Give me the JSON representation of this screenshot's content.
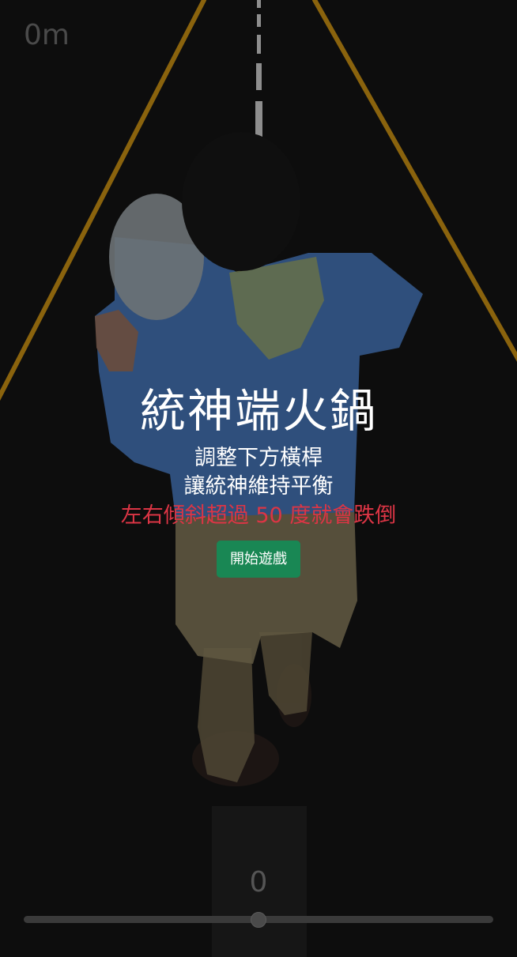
{
  "game": {
    "distance": "0m",
    "title": "統神端火鍋",
    "instruction_line1": "調整下方橫桿",
    "instruction_line2": "讓統神維持平衡",
    "warning": "左右傾斜超過 50 度就會跌倒",
    "start_button": "開始遊戲",
    "angle_value": "0",
    "slider_fraction": 0.5
  },
  "colors": {
    "background": "#0d0d0d",
    "road_lines": "#b07d10",
    "center_dashes": "#9a9a9a",
    "warning": "#dc3545",
    "button": "#198754"
  },
  "icons": {
    "player": "player-sprite"
  }
}
